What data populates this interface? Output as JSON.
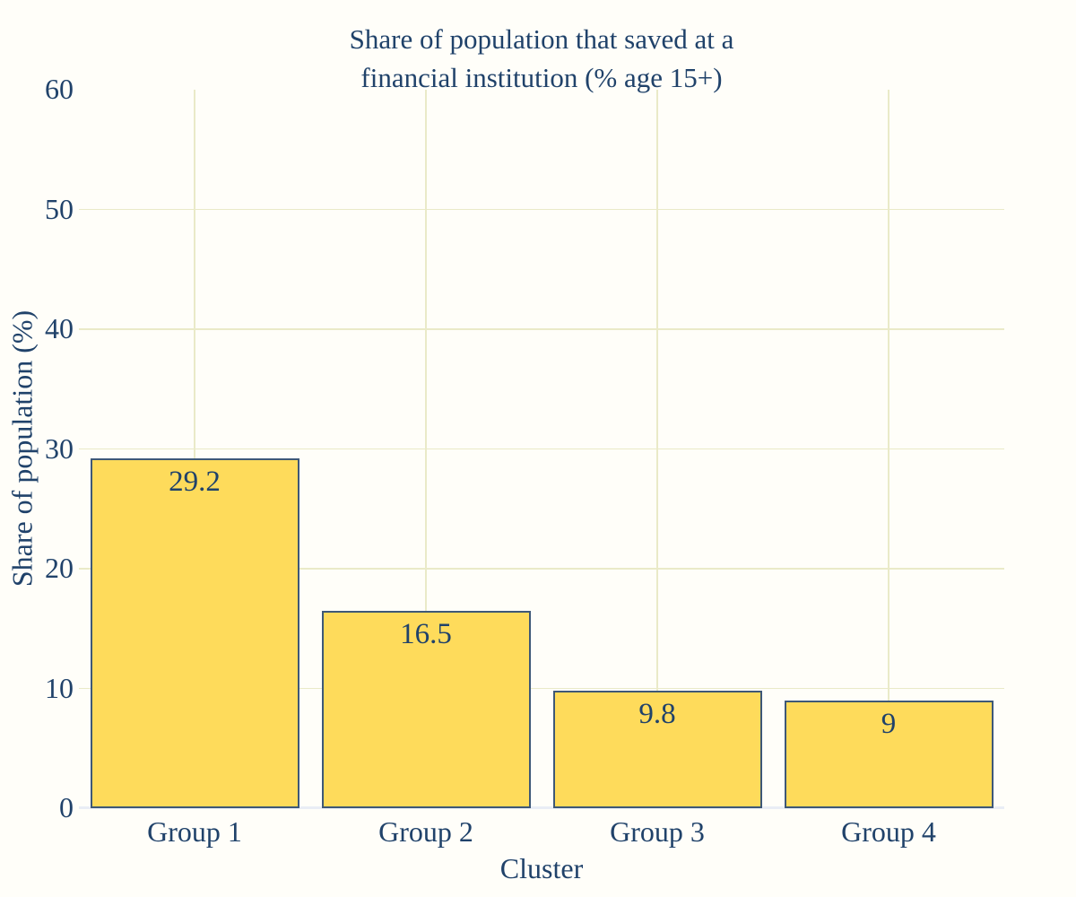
{
  "chart_data": {
    "type": "bar",
    "title": "Share of population that saved at a financial institution (% age 15+)",
    "title_lines": [
      "Share of population that saved at a",
      "financial institution (% age 15+)"
    ],
    "xlabel": "Cluster",
    "ylabel": "Share of population (%)",
    "categories": [
      "Group 1",
      "Group 2",
      "Group 3",
      "Group 4"
    ],
    "values": [
      29.2,
      16.5,
      9.8,
      9
    ],
    "value_labels": [
      "29.2",
      "16.5",
      "9.8",
      "9"
    ],
    "ylim": [
      0,
      60
    ],
    "yticks": [
      0,
      10,
      20,
      30,
      40,
      50,
      60
    ],
    "grid": true,
    "legend": "none",
    "colors": {
      "background": "#FFFEF9",
      "text": "#20426A",
      "bar_fill": "#FEDB5B",
      "bar_border": "#3E5877",
      "gridline": "#EAEAC8",
      "zeroline": "#E9EDF5"
    }
  }
}
